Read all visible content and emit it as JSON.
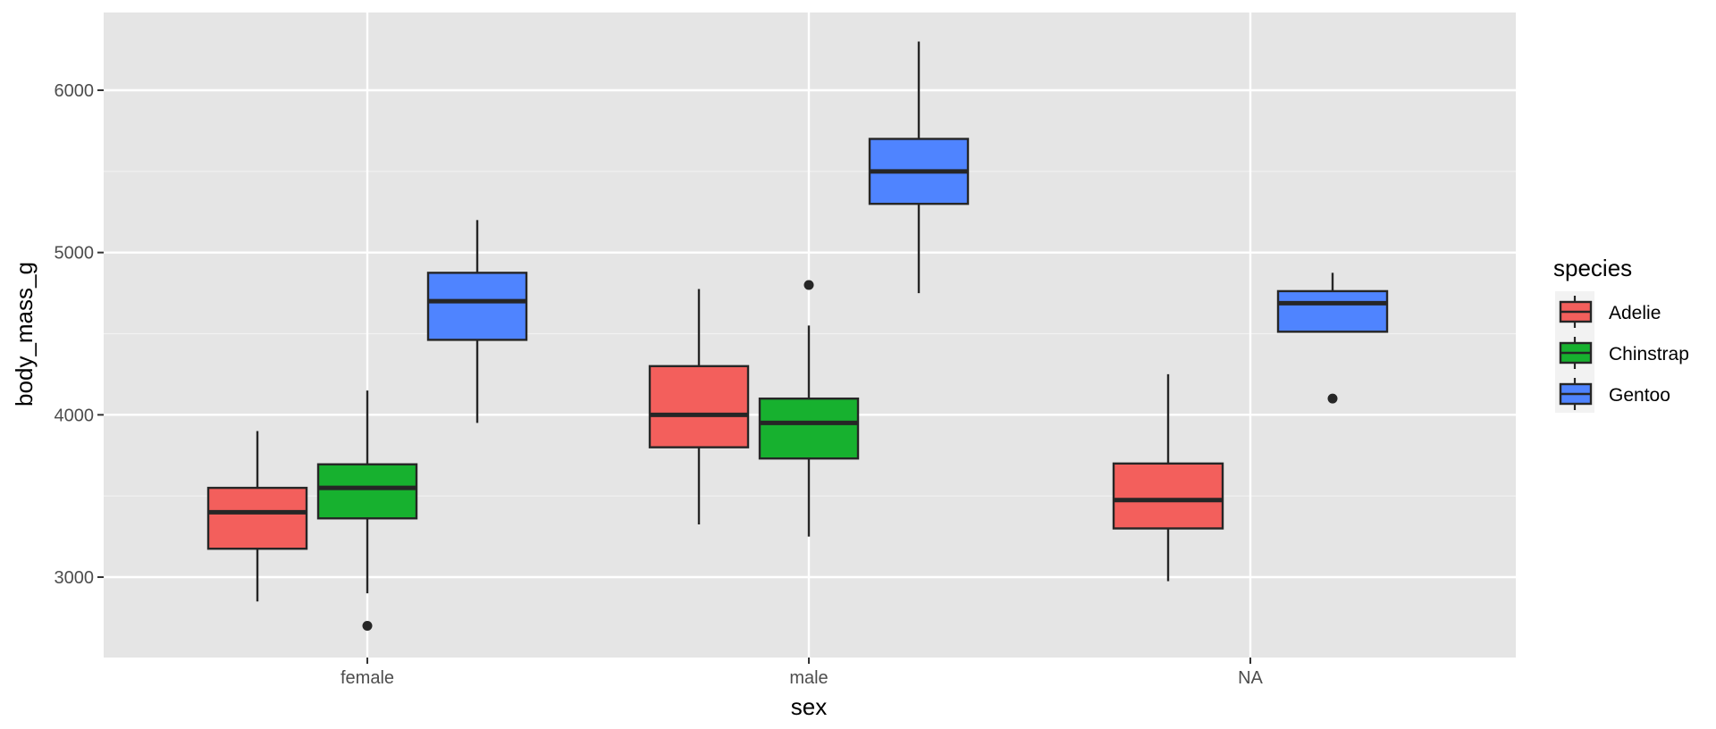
{
  "chart_data": {
    "type": "boxplot",
    "title": "",
    "xlabel": "sex",
    "ylabel": "body_mass_g",
    "categories": [
      "female",
      "male",
      "NA"
    ],
    "y_ticks": [
      3000,
      4000,
      5000,
      6000
    ],
    "ylim": [
      2525,
      6475
    ],
    "grid": true,
    "legend": {
      "title": "species",
      "position": "right",
      "entries": [
        {
          "label": "Adelie",
          "color": "#F8766D"
        },
        {
          "label": "Chinstrap",
          "color": "#00BA38"
        },
        {
          "label": "Gentoo",
          "color": "#619CFF"
        }
      ]
    },
    "series": [
      {
        "name": "Adelie",
        "color": "#F35F5C",
        "boxes": [
          {
            "category": "female",
            "whisker_low": 2850,
            "q1": 3175,
            "median": 3400,
            "q3": 3550,
            "whisker_high": 3900,
            "outliers": []
          },
          {
            "category": "male",
            "whisker_low": 3325,
            "q1": 3800,
            "median": 4000,
            "q3": 4300,
            "whisker_high": 4775,
            "outliers": []
          },
          {
            "category": "NA",
            "whisker_low": 2975,
            "q1": 3300,
            "median": 3475,
            "q3": 3700,
            "whisker_high": 4250,
            "outliers": []
          }
        ]
      },
      {
        "name": "Chinstrap",
        "color": "#17B12F",
        "boxes": [
          {
            "category": "female",
            "whisker_low": 2900,
            "q1": 3362,
            "median": 3550,
            "q3": 3695,
            "whisker_high": 4150,
            "outliers": [
              2700
            ]
          },
          {
            "category": "male",
            "whisker_low": 3250,
            "q1": 3731,
            "median": 3950,
            "q3": 4100,
            "whisker_high": 4550,
            "outliers": [
              4800
            ]
          }
        ]
      },
      {
        "name": "Gentoo",
        "color": "#4F84FF",
        "boxes": [
          {
            "category": "female",
            "whisker_low": 3950,
            "q1": 4462,
            "median": 4700,
            "q3": 4875,
            "whisker_high": 5200,
            "outliers": []
          },
          {
            "category": "male",
            "whisker_low": 4750,
            "q1": 5300,
            "median": 5500,
            "q3": 5700,
            "whisker_high": 6300,
            "outliers": []
          },
          {
            "category": "NA",
            "whisker_low": 4512,
            "q1": 4512,
            "median": 4688,
            "q3": 4762,
            "whisker_high": 4875,
            "outliers": [
              4100
            ]
          }
        ]
      }
    ]
  },
  "labels": {
    "x_title": "sex",
    "y_title": "body_mass_g",
    "legend_title": "species",
    "x_ticks": [
      "female",
      "male",
      "NA"
    ],
    "y_ticks": [
      "3000",
      "4000",
      "5000",
      "6000"
    ],
    "legend": [
      "Adelie",
      "Chinstrap",
      "Gentoo"
    ]
  }
}
